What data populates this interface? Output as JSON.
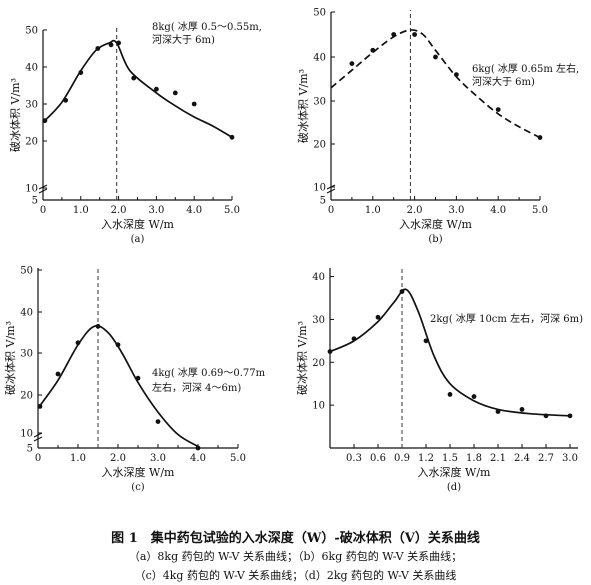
{
  "figure_caption": {
    "title": "图 1　集中药包试验的入水深度（W）-破冰体积（V）关系曲线",
    "line1": "（a）8kg 药包的 W-V 关系曲线；（b）6kg 药包的 W-V 关系曲线；",
    "line2": "（c）4kg 药包的 W-V 关系曲线；（d）2kg 药包的 W-V 关系曲线"
  },
  "chart_data": [
    {
      "id": "a",
      "type": "line",
      "panel_label": "(a)",
      "xlabel": "入水深度 W/m",
      "ylabel": "破冰体积 V/m³",
      "xlim": [
        0,
        5.0
      ],
      "xticks": [
        0,
        1.0,
        2.0,
        3.0,
        4.0,
        5.0
      ],
      "xtick_labels": [
        "0",
        "1.0",
        "2.0",
        "3.0",
        "4.0",
        "5.0"
      ],
      "minor_xticks": [
        0.5,
        1.5,
        2.5,
        3.5,
        4.5
      ],
      "ylim": [
        5,
        50
      ],
      "yticks": [
        5,
        10,
        20,
        30,
        40,
        50
      ],
      "ytick_labels": [
        "5",
        "10",
        "20",
        "30",
        "40",
        "50"
      ],
      "axis_break": true,
      "line_style": "solid",
      "vline_x": 1.95,
      "points": {
        "x": [
          0.05,
          0.6,
          1.0,
          1.45,
          1.8,
          2.0,
          2.4,
          3.0,
          3.5,
          4.0,
          5.0
        ],
        "y": [
          25.5,
          31,
          38.5,
          45,
          46,
          46.5,
          37,
          34,
          33,
          30,
          21
        ]
      },
      "curve": {
        "x": [
          0,
          0.5,
          1.0,
          1.4,
          1.75,
          1.95,
          2.3,
          3.0,
          3.5,
          4.0,
          4.5,
          5.0
        ],
        "y": [
          25,
          30.5,
          39,
          44.5,
          46.5,
          46.5,
          39,
          33,
          29.5,
          26.5,
          24,
          21
        ]
      },
      "annotation": [
        "8kg( 冰厚 0.5～0.55m,",
        "河深大于 6m)"
      ]
    },
    {
      "id": "b",
      "type": "line",
      "panel_label": "(b)",
      "xlabel": "入水深度 W/m",
      "ylabel": "破冰体积 V/m³",
      "xlim": [
        0,
        5.0
      ],
      "xticks": [
        0,
        1.0,
        2.0,
        3.0,
        4.0,
        5.0
      ],
      "xtick_labels": [
        "0",
        "1.0",
        "2.0",
        "3.0",
        "4.0",
        "5.0"
      ],
      "minor_xticks": [
        0.5,
        1.5,
        2.5,
        3.5,
        4.5
      ],
      "ylim": [
        5,
        50
      ],
      "yticks": [
        5,
        10,
        20,
        30,
        40,
        50
      ],
      "ytick_labels": [
        "5",
        "10",
        "20",
        "30",
        "40",
        "50"
      ],
      "axis_break": true,
      "line_style": "dashed",
      "vline_x": 1.9,
      "points": {
        "x": [
          0.5,
          1.0,
          1.5,
          2.0,
          2.5,
          3.0,
          4.0,
          5.0
        ],
        "y": [
          38.5,
          41.5,
          45,
          45,
          40,
          36,
          28,
          21.5
        ]
      },
      "curve": {
        "x": [
          0,
          0.5,
          1.0,
          1.5,
          1.9,
          2.2,
          2.5,
          3.0,
          3.5,
          4.0,
          4.5,
          5.0
        ],
        "y": [
          33,
          37,
          41,
          44.5,
          46,
          45,
          41.5,
          35.5,
          31,
          27,
          24,
          21.5
        ]
      },
      "annotation": [
        "6kg( 冰厚 0.65m 左右,",
        "河深大于 6m)"
      ]
    },
    {
      "id": "c",
      "type": "line",
      "panel_label": "(c)",
      "xlabel": "入水深度 W/m",
      "ylabel": "破冰体积 V/m³",
      "xlim": [
        0,
        5.0
      ],
      "xticks": [
        0,
        1.0,
        2.0,
        3.0,
        4.0,
        5.0
      ],
      "xtick_labels": [
        "0",
        "1.0",
        "2.0",
        "3.0",
        "4.0",
        "5.0"
      ],
      "minor_xticks": [
        0.5,
        1.5,
        2.5,
        3.5,
        4.5
      ],
      "ylim": [
        5,
        50
      ],
      "yticks": [
        5,
        10,
        20,
        30,
        40,
        50
      ],
      "ytick_labels": [
        "5",
        "10",
        "20",
        "30",
        "40",
        "50"
      ],
      "axis_break": true,
      "line_style": "solid",
      "vline_x": 1.5,
      "points": {
        "x": [
          0.05,
          0.5,
          1.0,
          1.5,
          2.0,
          2.5,
          3.0,
          4.0
        ],
        "y": [
          17,
          25,
          32.5,
          36.5,
          32,
          24,
          13,
          5
        ]
      },
      "curve": {
        "x": [
          0,
          0.5,
          1.0,
          1.4,
          1.75,
          2.1,
          2.5,
          3.0,
          3.5,
          4.0
        ],
        "y": [
          16.5,
          23.5,
          32,
          36.5,
          35,
          30,
          23,
          15.5,
          9.5,
          5.5
        ]
      },
      "annotation": [
        "4kg( 冰厚 0.69～0.77m",
        "左右，河深 4～6m)"
      ]
    },
    {
      "id": "d",
      "type": "line",
      "panel_label": "(d)",
      "xlabel": "入水深度 W/m",
      "ylabel": "破冰体积 V/m³",
      "xlim": [
        0,
        3.1
      ],
      "xticks": [
        0.3,
        0.6,
        0.9,
        1.2,
        1.5,
        1.8,
        2.1,
        2.4,
        2.7,
        3.0
      ],
      "xtick_labels": [
        "0.3",
        "0.6",
        "0.9",
        "1.2",
        "1.5",
        "1.8",
        "2.1",
        "2.4",
        "2.7",
        "3.0"
      ],
      "minor_xticks": [],
      "ylim": [
        0,
        42
      ],
      "yticks": [
        10,
        20,
        30,
        40
      ],
      "ytick_labels": [
        "10",
        "20",
        "30",
        "40"
      ],
      "axis_break": false,
      "line_style": "solid",
      "vline_x": 0.9,
      "points": {
        "x": [
          0.0,
          0.3,
          0.6,
          0.9,
          1.2,
          1.5,
          1.8,
          2.1,
          2.4,
          2.7,
          3.0
        ],
        "y": [
          22.5,
          25.5,
          30.5,
          36.5,
          25,
          12.5,
          12,
          8.5,
          9,
          7.5,
          7.5
        ]
      },
      "curve": {
        "x": [
          0,
          0.3,
          0.6,
          0.8,
          0.95,
          1.1,
          1.3,
          1.5,
          1.8,
          2.1,
          2.5,
          3.0
        ],
        "y": [
          22.5,
          25,
          29.5,
          34,
          37,
          32,
          21.5,
          15,
          11,
          9,
          8,
          7.5
        ]
      },
      "annotation": [
        "2kg( 冰厚 10cm 左右，河深 6m)"
      ]
    }
  ]
}
